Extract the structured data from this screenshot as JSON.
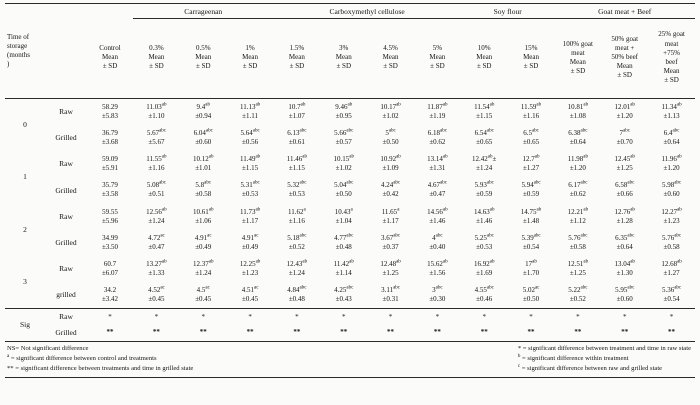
{
  "table": {
    "time_header_lines": [
      "Time of",
      "storage",
      "(months",
      ")"
    ],
    "groups": [
      {
        "label": "Carrageenan",
        "span": 3
      },
      {
        "label": "Carboxymethyl cellulose",
        "span": 4
      },
      {
        "label": "Soy flour",
        "span": 2
      },
      {
        "label": "Goat meat + Beef",
        "span": 3
      }
    ],
    "column_header_lines": [
      [
        "Control",
        "Mean",
        "± SD"
      ],
      [
        "0.3%",
        "Mean",
        "± SD"
      ],
      [
        "0.5%",
        "Mean",
        "± SD"
      ],
      [
        "1%",
        "Mean",
        "± SD"
      ],
      [
        "1.5%",
        "Mean",
        "± SD"
      ],
      [
        "3%",
        "Mean",
        "± SD"
      ],
      [
        "4.5%",
        "Mean",
        "± SD"
      ],
      [
        "5%",
        "Mean",
        "± SD"
      ],
      [
        "10%",
        "Mean",
        "± SD"
      ],
      [
        "15%",
        "Mean",
        "± SD"
      ],
      [
        "100% goat",
        "meat",
        "Mean",
        "± SD"
      ],
      [
        "50% goat",
        "meat +",
        "50% beef",
        "Mean",
        "± SD"
      ],
      [
        "25% goat",
        "meat",
        "+75%",
        "beef",
        "Mean",
        "± SD"
      ]
    ],
    "row_groups": [
      {
        "time": "0",
        "sig": false,
        "rows": [
          {
            "state": "Raw",
            "cells": [
              "58.29 ±5.83",
              "11.03{ab} ±1.10",
              "9.4{ab} ±0.94",
              "11.13{ab} ±1.11",
              "10.7{ab} ±1.07",
              "9.46{ab} ±0.95",
              "10.17{ab} ±1.02",
              "11.87{ab} ±1.19",
              "11.54{ab} ±1.15",
              "11.59{ab} ±1.16",
              "10.81{ab} ±1.08",
              "12.01{ab} ±1.20",
              "11.34{ab} ±1.13"
            ]
          },
          {
            "state": "Grilled",
            "cells": [
              "36.79 ±3.68",
              "5.67{abc} ±5.67",
              "6.04{abc} ±0.60",
              "5.64{abc} ±0.56",
              "6.13{abc} ±0.61",
              "5.66{abc} ±0.57",
              "5{abc} ±0.50",
              "6.18{abc} ±0.62",
              "6.54{abc} ±0.65",
              "6.5{abc} ±0.65",
              "6.38{abc} ±0.64",
              "7{abc} ±0.70",
              "6.4{abc} ±0.64"
            ]
          }
        ]
      },
      {
        "time": "1",
        "sig": false,
        "rows": [
          {
            "state": "Raw",
            "cells": [
              "59.09 ±5.91",
              "11.55{ab} ±1.16",
              "10.12{ab} ±1.01",
              "11.49{ab} ±1.15",
              "11.46{ab} ±1.15",
              "10.15{ab} ±1.02",
              "10.92{ab} ±1.09",
              "13.14{ab} ±1.31",
              "12.42{ab}± ±1.24",
              "12.7{ab} ±1.27",
              "11.98{ab} ±1.20",
              "12.45{ab} ±1.25",
              "11.96{ab} ±1.20"
            ]
          },
          {
            "state": "Grilled",
            "cells": [
              "35.79 ±3.58",
              "5.08{abc} ±0.51",
              "5.8{abc} ±0.58",
              "5.31{abc} ±0.53",
              "5.32{abc} ±0.53",
              "5.04{abc} ±0.50",
              "4.24{abc} ±0.42",
              "4.67{abc} ±0.47",
              "5.93{abc} ±0.59",
              "5.94{abc} ±0.59",
              "6.17{abc} ±0.62",
              "6.58{abc} ±0.66",
              "5.98{abc} ±0.60"
            ]
          }
        ]
      },
      {
        "time": "2",
        "sig": false,
        "rows": [
          {
            "state": "Raw",
            "cells": [
              "59.55 ±5.96",
              "12.56{ab} ±1.24",
              "10.61{ab} ±1.06",
              "11.73{ab} ±1.17",
              "11.62{a} ±1.16",
              "10.43{a} ±1.04",
              "11.65{a} ±1.17",
              "14.56{ab} ±1.46",
              "14.63{ab} ±1.46",
              "14.75{ab} ±1.48",
              "12.21{ab} ±1.12",
              "12.76{ab} ±1.28",
              "12.27{ab} ±1.23"
            ]
          },
          {
            "state": "Grilled",
            "cells": [
              "34.99 ±3.50",
              "4.72{ac} ±0.47",
              "4.91{ac} ±0.49",
              "4.91{ac} ±0.49",
              "5.18{abc} ±0.52",
              "4.77{abc} ±0.48",
              "3.67{abc} ±0.37",
              "4{abc} ±0.40",
              "5.25{abc} ±0.53",
              "5.39{abc} ±0.54",
              "5.76{abc} ±0.58",
              "6.35{abc} ±0.64",
              "5.76{abc} ±0.58"
            ]
          }
        ]
      },
      {
        "time": "3",
        "sig": false,
        "rows": [
          {
            "state": "Raw",
            "cells": [
              "60.7 ±6.07",
              "13.27{ab} ±1.33",
              "12.37{ab} ±1.24",
              "12.25{ab} ±1.23",
              "12.43{ab} ±1.24",
              "11.42{ab} ±1.14",
              "12.48{ab} ±1.25",
              "15.62{ab} ±1.56",
              "16.92{ab} ±1.69",
              "17{ab} ±1.70",
              "12.51{ab} ±1.25",
              "13.04{ab} ±1.30",
              "12.68{ab} ±1.27"
            ]
          },
          {
            "state": "grilled",
            "cells": [
              "34.2 ±3.42",
              "4.52{ac} ±0.45",
              "4.5{ac} ±0.45",
              "4.51{ac} ±0.45",
              "4.84{abc} ±0.48",
              "4.25{abc} ±0.43",
              "3.11{abc} ±0.31",
              "3{abc} ±0.30",
              "4.55{abc} ±0.46",
              "5.02{ac} ±0.50",
              "5.22{abc} ±0.52",
              "5.95{abc} ±0.60",
              "5.36{abc} ±0.54"
            ]
          }
        ]
      },
      {
        "time": "Sig",
        "sig": true,
        "rows": [
          {
            "state": "Raw",
            "cells": [
              "*",
              "*",
              "*",
              "*",
              "*",
              "*",
              "*",
              "*",
              "*",
              "*",
              "*",
              "*",
              "*"
            ]
          },
          {
            "state": "Grilled",
            "cells": [
              "**",
              "**",
              "**",
              "**",
              "**",
              "**",
              "**",
              "**",
              "**",
              "**",
              "**",
              "**",
              "**"
            ]
          }
        ]
      }
    ],
    "footnotes": {
      "left": [
        "NS= Not significant difference",
        "{a} = significant difference between control and treatments",
        "** = significant difference between treatments and time in grilled state"
      ],
      "right": [
        "* = significant difference between treatment and time in raw state",
        "{b} = significant difference within treatment",
        "{c} = significant difference between raw and grilled state"
      ]
    }
  }
}
